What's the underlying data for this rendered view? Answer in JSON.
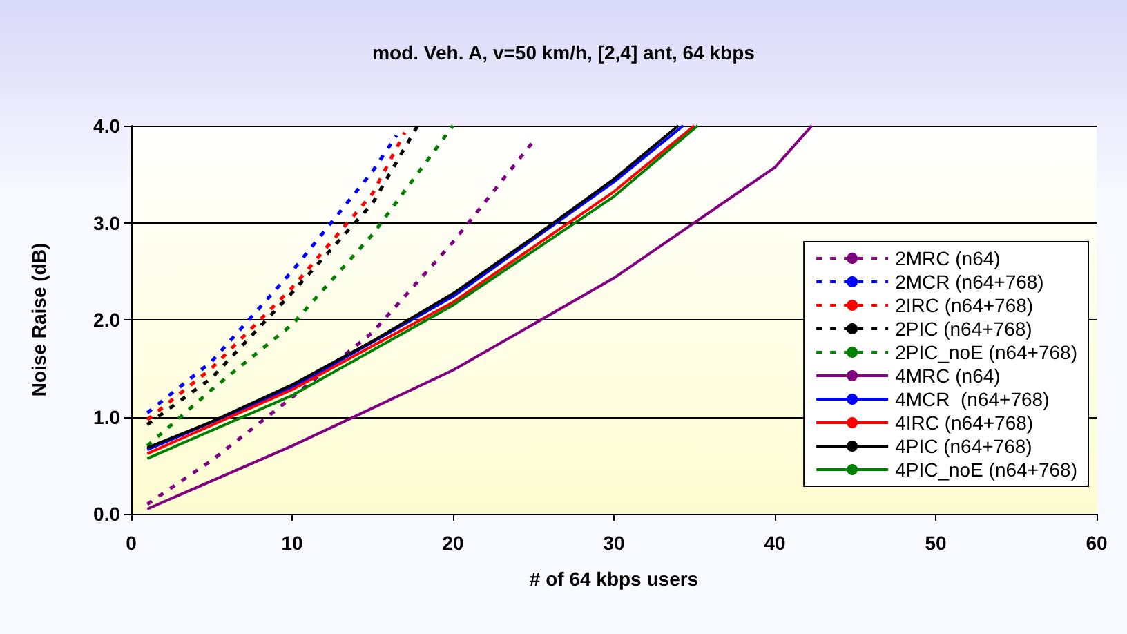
{
  "chart_data": {
    "type": "line",
    "title": "mod. Veh. A, v=50 km/h, [2,4] ant, 64 kbps",
    "xlabel": "# of 64 kbps users",
    "ylabel": "Noise Raise (dB)",
    "xlim": [
      0,
      60
    ],
    "xticks": [
      0,
      10,
      20,
      30,
      40,
      50,
      60
    ],
    "ylim": [
      0,
      4
    ],
    "yticks": [
      {
        "value": 0,
        "label": "0.0"
      },
      {
        "value": 1,
        "label": "1.0"
      },
      {
        "value": 2,
        "label": "2.0"
      },
      {
        "value": 3,
        "label": "3.0"
      },
      {
        "value": 4,
        "label": "4.0"
      }
    ],
    "grid": "y",
    "legend": "right",
    "marker": "none",
    "series": [
      {
        "name": "2MRC (n64)",
        "color": "#800080",
        "line_style": "dashed",
        "x": [
          1,
          5,
          10,
          15,
          20,
          25
        ],
        "values": [
          0.1,
          0.55,
          1.2,
          1.87,
          2.8,
          3.84
        ]
      },
      {
        "name": "2MCR (n64+768)",
        "color": "#0000ff",
        "line_style": "dashed",
        "x": [
          1,
          5,
          10,
          15,
          16.5
        ],
        "values": [
          1.04,
          1.57,
          2.5,
          3.53,
          3.9
        ]
      },
      {
        "name": "2IRC (n64+768)",
        "color": "#ff0000",
        "line_style": "dashed",
        "x": [
          1,
          5,
          10,
          15,
          17
        ],
        "values": [
          0.97,
          1.5,
          2.33,
          3.3,
          3.93
        ]
      },
      {
        "name": "2PIC (n64+768)",
        "color": "#000000",
        "line_style": "dashed",
        "x": [
          1,
          5,
          10,
          15,
          17.8
        ],
        "values": [
          0.92,
          1.4,
          2.28,
          3.2,
          4.0
        ]
      },
      {
        "name": "2PIC_noE (n64+768)",
        "color": "#008000",
        "line_style": "dashed",
        "x": [
          1,
          5,
          10,
          15,
          20
        ],
        "values": [
          0.7,
          1.28,
          1.95,
          2.88,
          4.0
        ]
      },
      {
        "name": "4MRC (n64)",
        "color": "#800080",
        "line_style": "solid",
        "x": [
          1,
          10,
          20,
          30,
          40,
          42.3
        ],
        "values": [
          0.05,
          0.7,
          1.48,
          2.43,
          3.57,
          4.0
        ]
      },
      {
        "name": "4MCR  (n64+768)",
        "color": "#0000ff",
        "line_style": "solid",
        "x": [
          1,
          10,
          20,
          30,
          34.3
        ],
        "values": [
          0.66,
          1.3,
          2.24,
          3.42,
          4.0
        ]
      },
      {
        "name": "4IRC (n64+768)",
        "color": "#ff0000",
        "line_style": "solid",
        "x": [
          1,
          10,
          20,
          30,
          35
        ],
        "values": [
          0.62,
          1.28,
          2.18,
          3.32,
          4.0
        ]
      },
      {
        "name": "4PIC (n64+768)",
        "color": "#000000",
        "line_style": "solid",
        "x": [
          1,
          5,
          10,
          15,
          20,
          25,
          30,
          34
        ],
        "values": [
          0.68,
          0.95,
          1.33,
          1.78,
          2.27,
          2.85,
          3.45,
          4.0
        ]
      },
      {
        "name": "4PIC_noE (n64+768)",
        "color": "#008000",
        "line_style": "solid",
        "x": [
          1,
          10,
          20,
          30,
          35.2
        ],
        "values": [
          0.57,
          1.22,
          2.15,
          3.27,
          4.0
        ]
      }
    ]
  }
}
